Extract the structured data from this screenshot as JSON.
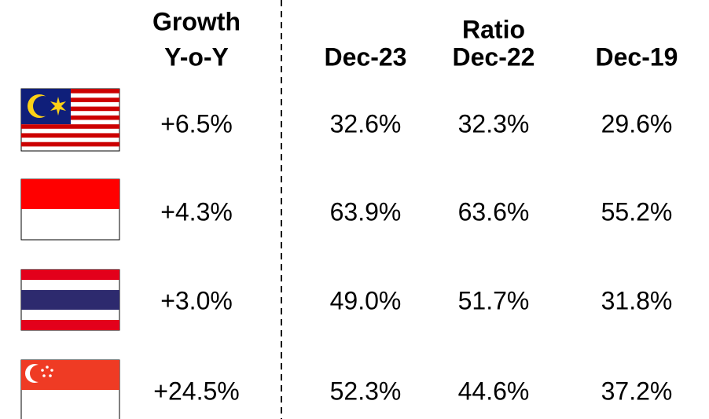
{
  "table": {
    "header": {
      "growth": [
        "Growth",
        "Y-o-Y"
      ],
      "ratio": "Ratio",
      "columns": [
        "Dec-23",
        "Dec-22",
        "Dec-19"
      ]
    },
    "rows": [
      [
        "+6.5%",
        "32.6%",
        "32.3%",
        "29.6%"
      ],
      [
        "+4.3%",
        "63.9%",
        "63.6%",
        "55.2%"
      ],
      [
        "+3.0%",
        "49.0%",
        "51.7%",
        "31.8%"
      ],
      [
        "+24.5%",
        "52.3%",
        "44.6%",
        "37.2%"
      ]
    ]
  }
}
